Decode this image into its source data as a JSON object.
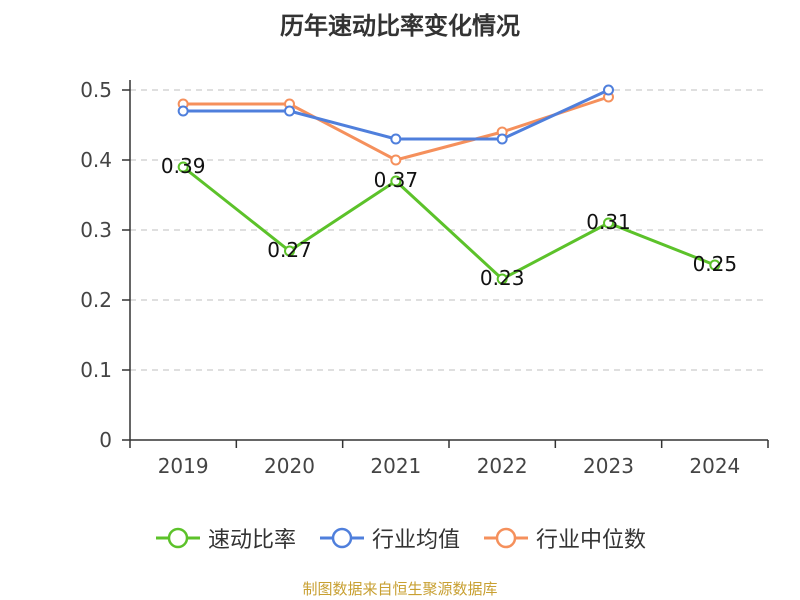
{
  "chart_data": {
    "type": "line",
    "title": "历年速动比率变化情况",
    "categories": [
      "2019",
      "2020",
      "2021",
      "2022",
      "2023",
      "2024"
    ],
    "ylim": [
      0,
      0.5
    ],
    "yticks": [
      0,
      0.1,
      0.2,
      0.3,
      0.4,
      0.5
    ],
    "grid": true,
    "legend_position": "bottom",
    "series": [
      {
        "name": "速动比率",
        "color": "#5cc22a",
        "values": [
          0.39,
          0.27,
          0.37,
          0.23,
          0.31,
          0.25
        ],
        "labels": [
          "0.39",
          "0.27",
          "0.37",
          "0.23",
          "0.31",
          "0.25"
        ]
      },
      {
        "name": "行业均值",
        "color": "#4f7fdc",
        "values": [
          0.47,
          0.47,
          0.43,
          0.43,
          0.5,
          null
        ]
      },
      {
        "name": "行业中位数",
        "color": "#f5905c",
        "values": [
          0.48,
          0.48,
          0.4,
          0.44,
          0.49,
          null
        ]
      }
    ]
  },
  "source": "制图数据来自恒生聚源数据库"
}
